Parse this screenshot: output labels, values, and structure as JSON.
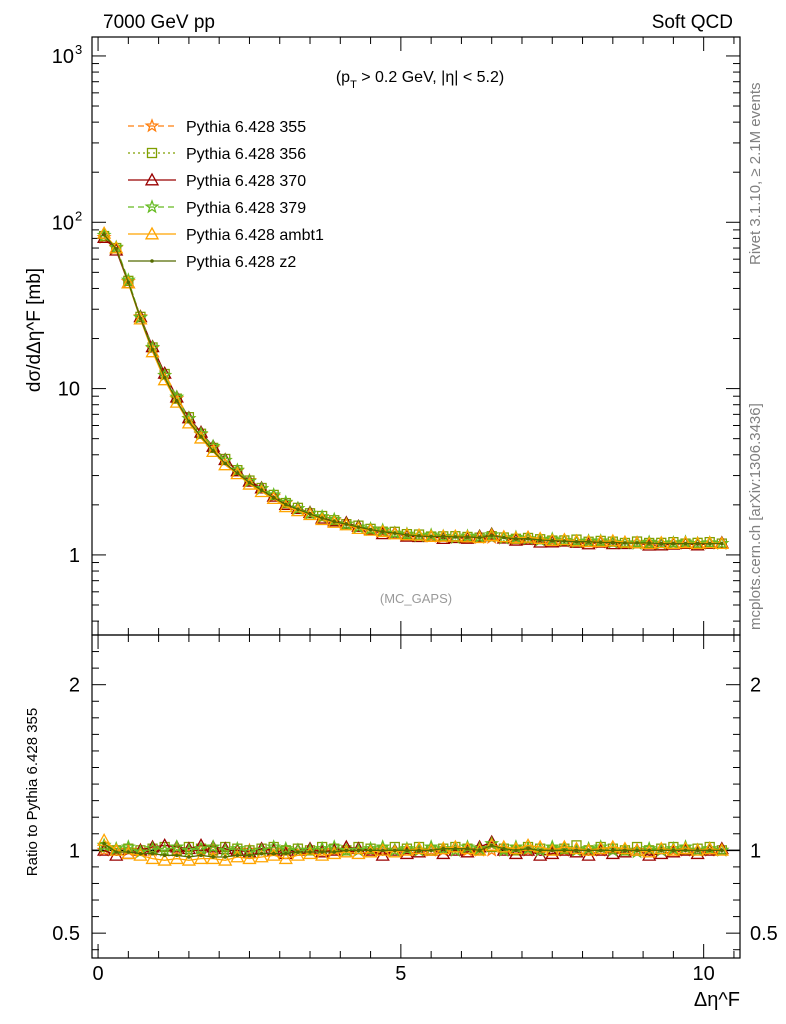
{
  "header": {
    "left": "7000 GeV pp",
    "right": "Soft QCD"
  },
  "side_labels": {
    "rivet": "Rivet 3.1.10, ≥ 2.1M events",
    "mcplots": "mcplots.cern.ch [arXiv:1306.3436]"
  },
  "chart_data": [
    {
      "type": "line",
      "panel": "main",
      "cut_label": {
        "prefix": "(p",
        "sub": "T",
        "rest": " > 0.2 GeV, |η| < 5.2)"
      },
      "watermark": "(MC_GAPS)",
      "ylabel": "dσ/dΔη^F [mb]",
      "yscale": "log",
      "xlim": [
        -0.1,
        10.6
      ],
      "ylim": [
        0.33,
        1300
      ],
      "y_tick_labels": [
        "1",
        "10",
        "10²",
        "10³"
      ],
      "legend_position": "top-left",
      "x": [
        0.1,
        0.3,
        0.5,
        0.7,
        0.9,
        1.1,
        1.3,
        1.5,
        1.7,
        1.9,
        2.1,
        2.3,
        2.5,
        2.7,
        2.9,
        3.1,
        3.3,
        3.5,
        3.7,
        3.9,
        4.1,
        4.3,
        4.5,
        4.7,
        4.9,
        5.1,
        5.3,
        5.5,
        5.7,
        5.9,
        6.1,
        6.3,
        6.5,
        6.7,
        6.9,
        7.1,
        7.3,
        7.5,
        7.7,
        7.9,
        8.1,
        8.3,
        8.5,
        8.7,
        8.9,
        9.1,
        9.3,
        9.5,
        9.7,
        9.9,
        10.1,
        10.3
      ],
      "reference": [
        81,
        70,
        44,
        27,
        17.5,
        12,
        8.7,
        6.6,
        5.3,
        4.4,
        3.7,
        3.2,
        2.8,
        2.5,
        2.25,
        2.05,
        1.9,
        1.78,
        1.68,
        1.6,
        1.53,
        1.47,
        1.42,
        1.38,
        1.35,
        1.32,
        1.3,
        1.29,
        1.28,
        1.27,
        1.27,
        1.27,
        1.27,
        1.26,
        1.25,
        1.24,
        1.23,
        1.22,
        1.21,
        1.2,
        1.2,
        1.19,
        1.19,
        1.18,
        1.18,
        1.18,
        1.17,
        1.17,
        1.17,
        1.17,
        1.17,
        1.17
      ],
      "series": [
        {
          "name": "Pythia 6.428 355",
          "color": "#ff7f0e",
          "marker": "star",
          "dash": "6,4"
        },
        {
          "name": "Pythia 6.428 356",
          "color": "#7f9f00",
          "marker": "square",
          "dash": "2,3"
        },
        {
          "name": "Pythia 6.428 370",
          "color": "#990000",
          "marker": "triangle",
          "dash": ""
        },
        {
          "name": "Pythia 6.428 379",
          "color": "#66bb22",
          "marker": "star",
          "dash": "6,4"
        },
        {
          "name": "Pythia 6.428 ambt1",
          "color": "#ffa500",
          "marker": "triangle",
          "dash": ""
        },
        {
          "name": "Pythia 6.428 z2",
          "color": "#556b00",
          "marker": "dot",
          "dash": ""
        }
      ]
    },
    {
      "type": "line",
      "panel": "ratio",
      "ylabel": "Ratio to Pythia 6.428 355",
      "xlabel": "Δη^F",
      "xlim": [
        -0.1,
        10.6
      ],
      "ylim": [
        0.35,
        2.3
      ],
      "x_ticks": [
        0,
        5,
        10
      ],
      "y_tick_labels": [
        "0.5",
        "1",
        "2"
      ],
      "x": [
        0.1,
        0.3,
        0.5,
        0.7,
        0.9,
        1.1,
        1.3,
        1.5,
        1.7,
        1.9,
        2.1,
        2.3,
        2.5,
        2.7,
        2.9,
        3.1,
        3.3,
        3.5,
        3.7,
        3.9,
        4.1,
        4.3,
        4.5,
        4.7,
        4.9,
        5.1,
        5.3,
        5.5,
        5.7,
        5.9,
        6.1,
        6.3,
        6.5,
        6.7,
        6.9,
        7.1,
        7.3,
        7.5,
        7.7,
        7.9,
        8.1,
        8.3,
        8.5,
        8.7,
        8.9,
        9.1,
        9.3,
        9.5,
        9.7,
        9.9,
        10.1,
        10.3
      ],
      "series": [
        {
          "name": "Pythia 6.428 355",
          "values": [
            1,
            1,
            1,
            1,
            1,
            1,
            1,
            1,
            1,
            1,
            1,
            1,
            1,
            1,
            1,
            1,
            1,
            1,
            1,
            1,
            1,
            1,
            1,
            1,
            1,
            1,
            1,
            1,
            1,
            1,
            1,
            1,
            1,
            1,
            1,
            1,
            1,
            1,
            1,
            1,
            1,
            1,
            1,
            1,
            1,
            1,
            1,
            1,
            1,
            1,
            1,
            1
          ]
        },
        {
          "name": "Pythia 6.428 356",
          "values": [
            1.02,
            1.0,
            1.01,
            1.0,
            1.01,
            1.02,
            1.0,
            1.02,
            1.01,
            1.0,
            1.02,
            1.01,
            1.0,
            1.01,
            1.02,
            1.0,
            1.01,
            1.0,
            1.02,
            1.01,
            1.0,
            1.02,
            1.01,
            1.0,
            1.02,
            1.01,
            1.02,
            1.0,
            1.01,
            1.02,
            1.01,
            1.0,
            1.02,
            1.01,
            1.0,
            1.02,
            1.01,
            1.0,
            1.01,
            1.03,
            1.0,
            1.02,
            1.01,
            1.0,
            1.02,
            1.0,
            1.01,
            1.02,
            1.0,
            1.01,
            1.02,
            1.0
          ]
        },
        {
          "name": "Pythia 6.428 370",
          "values": [
            1.0,
            0.97,
            0.98,
            1.0,
            1.02,
            1.03,
            1.02,
            1.01,
            1.03,
            1.02,
            1.01,
            1.0,
            0.99,
            1.01,
            1.0,
            0.98,
            1.0,
            1.01,
            0.99,
            1.0,
            1.02,
            1.01,
            1.0,
            0.97,
            1.0,
            0.98,
            0.99,
            1.0,
            0.98,
            1.0,
            0.99,
            1.02,
            1.05,
            1.0,
            0.98,
            1.0,
            0.97,
            0.98,
            1.0,
            0.99,
            0.97,
            1.0,
            0.98,
            0.99,
            1.0,
            0.97,
            0.98,
            0.99,
            1.0,
            0.98,
            1.0,
            1.01
          ]
        },
        {
          "name": "Pythia 6.428 379",
          "values": [
            1.03,
            1.01,
            1.02,
            0.99,
            1.01,
            1.0,
            1.02,
            1.0,
            1.01,
            1.02,
            1.0,
            1.01,
            0.99,
            1.0,
            1.02,
            1.01,
            1.0,
            1.0,
            1.01,
            1.02,
            1.0,
            1.0,
            1.01,
            1.02,
            1.0,
            1.01,
            1.0,
            1.02,
            1.01,
            1.0,
            1.02,
            1.01,
            1.04,
            1.0,
            1.02,
            1.01,
            1.0,
            1.02,
            1.01,
            1.0,
            1.01,
            1.02,
            1.0,
            1.0,
            0.99,
            1.01,
            1.0,
            1.01,
            1.02,
            1.0,
            1.01,
            1.0
          ]
        },
        {
          "name": "Pythia 6.428 ambt1",
          "values": [
            1.06,
            1.0,
            0.98,
            0.97,
            0.95,
            0.94,
            0.95,
            0.94,
            0.95,
            0.95,
            0.94,
            0.96,
            0.95,
            0.96,
            0.97,
            0.95,
            0.97,
            0.98,
            0.97,
            0.98,
            0.99,
            0.98,
            0.99,
            1.0,
            0.99,
            1.0,
            1.01,
            1.0,
            1.01,
            1.02,
            1.01,
            1.0,
            1.03,
            1.02,
            1.01,
            1.03,
            1.02,
            1.0,
            1.02,
            1.01,
            1.0,
            1.01,
            1.02,
            1.01,
            1.0,
            0.99,
            1.01,
            1.0,
            1.01,
            1.0,
            1.01,
            1.0
          ]
        },
        {
          "name": "Pythia 6.428 z2",
          "values": [
            1.04,
            0.99,
            0.99,
            0.98,
            0.98,
            0.97,
            0.97,
            0.96,
            0.97,
            0.96,
            0.96,
            0.97,
            0.97,
            0.98,
            0.98,
            0.98,
            0.99,
            0.99,
            0.99,
            0.99,
            1.0,
            1.0,
            1.0,
            1.0,
            1.0,
            1.0,
            1.0,
            1.0,
            1.01,
            1.01,
            1.01,
            1.0,
            1.03,
            1.01,
            1.0,
            1.01,
            1.0,
            1.0,
            1.0,
            1.0,
            1.0,
            1.0,
            1.0,
            1.0,
            1.0,
            1.0,
            1.0,
            1.0,
            1.0,
            1.0,
            1.0,
            1.0
          ]
        }
      ]
    }
  ]
}
